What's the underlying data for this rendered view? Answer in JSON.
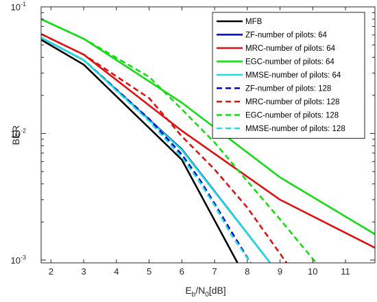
{
  "chart_data": {
    "type": "line",
    "title": "",
    "xlabel_main": "E",
    "xlabel_sub1": "b",
    "xlabel_mid": "/N",
    "xlabel_sub2": "0",
    "xlabel_tail": "[dB]",
    "ylabel": "BER",
    "xlim": [
      1.7,
      11.9
    ],
    "ylim": [
      0.00095,
      0.1
    ],
    "yscale": "log",
    "grid": false,
    "legend_position": "top-right",
    "xticks": [
      "2",
      "3",
      "4",
      "5",
      "6",
      "7",
      "8",
      "9",
      "10",
      "11"
    ],
    "yticks": [
      {
        "base": "10",
        "exp": "-1",
        "value": 0.1
      },
      {
        "base": "10",
        "exp": "-2",
        "value": 0.01
      },
      {
        "base": "10",
        "exp": "-3",
        "value": 0.001
      }
    ],
    "series": [
      {
        "name": "MFB",
        "color": "#000000",
        "dash": false,
        "x": [
          1.7,
          3,
          6,
          7.7
        ],
        "y": [
          0.055,
          0.035,
          0.0062,
          0.00095
        ]
      },
      {
        "name": "ZF-number of  pilots: 64",
        "color": "#0000cc",
        "dash": false,
        "x": [
          1.7,
          3,
          6,
          8.7
        ],
        "y": [
          0.057,
          0.038,
          0.0075,
          0.00095
        ]
      },
      {
        "name": "MRC-number of  pilots: 64",
        "color": "#dd1111",
        "dash": false,
        "x": [
          1.7,
          3,
          6,
          9,
          11.9
        ],
        "y": [
          0.061,
          0.042,
          0.0105,
          0.003,
          0.00125
        ]
      },
      {
        "name": "EGC-number of  pilots: 64",
        "color": "#11dd11",
        "dash": false,
        "x": [
          1.7,
          3,
          6,
          9,
          11.9
        ],
        "y": [
          0.08,
          0.056,
          0.0175,
          0.0045,
          0.0016
        ]
      },
      {
        "name": "MMSE-number of  pilots: 64",
        "color": "#22dddd",
        "dash": false,
        "x": [
          1.7,
          3,
          6,
          8.7
        ],
        "y": [
          0.057,
          0.038,
          0.0074,
          0.00095
        ]
      },
      {
        "name": "ZF-number of  pilots: 128",
        "color": "#0000cc",
        "dash": true,
        "x": [
          1.7,
          3,
          5,
          6,
          6.5,
          7,
          7.5,
          8.1
        ],
        "y": [
          0.057,
          0.038,
          0.013,
          0.0068,
          0.0045,
          0.0028,
          0.0017,
          0.00095
        ]
      },
      {
        "name": "MRC-number of  pilots: 128",
        "color": "#dd1111",
        "dash": true,
        "x": [
          1.7,
          3,
          5,
          6,
          7,
          8,
          9.2
        ],
        "y": [
          0.061,
          0.042,
          0.019,
          0.0095,
          0.0052,
          0.0026,
          0.00095
        ]
      },
      {
        "name": "EGC-number of  pilots: 128",
        "color": "#11dd11",
        "dash": true,
        "x": [
          1.7,
          3,
          5,
          6,
          7,
          8,
          9,
          10.1
        ],
        "y": [
          0.08,
          0.056,
          0.028,
          0.0155,
          0.0085,
          0.0042,
          0.0021,
          0.00095
        ]
      },
      {
        "name": "MMSE-number of  pilots: 128",
        "color": "#22dddd",
        "dash": true,
        "x": [
          1.7,
          3,
          5,
          6,
          6.5,
          7,
          7.5,
          8.1
        ],
        "y": [
          0.057,
          0.038,
          0.0125,
          0.0065,
          0.0043,
          0.0027,
          0.0016,
          0.00095
        ]
      }
    ]
  }
}
